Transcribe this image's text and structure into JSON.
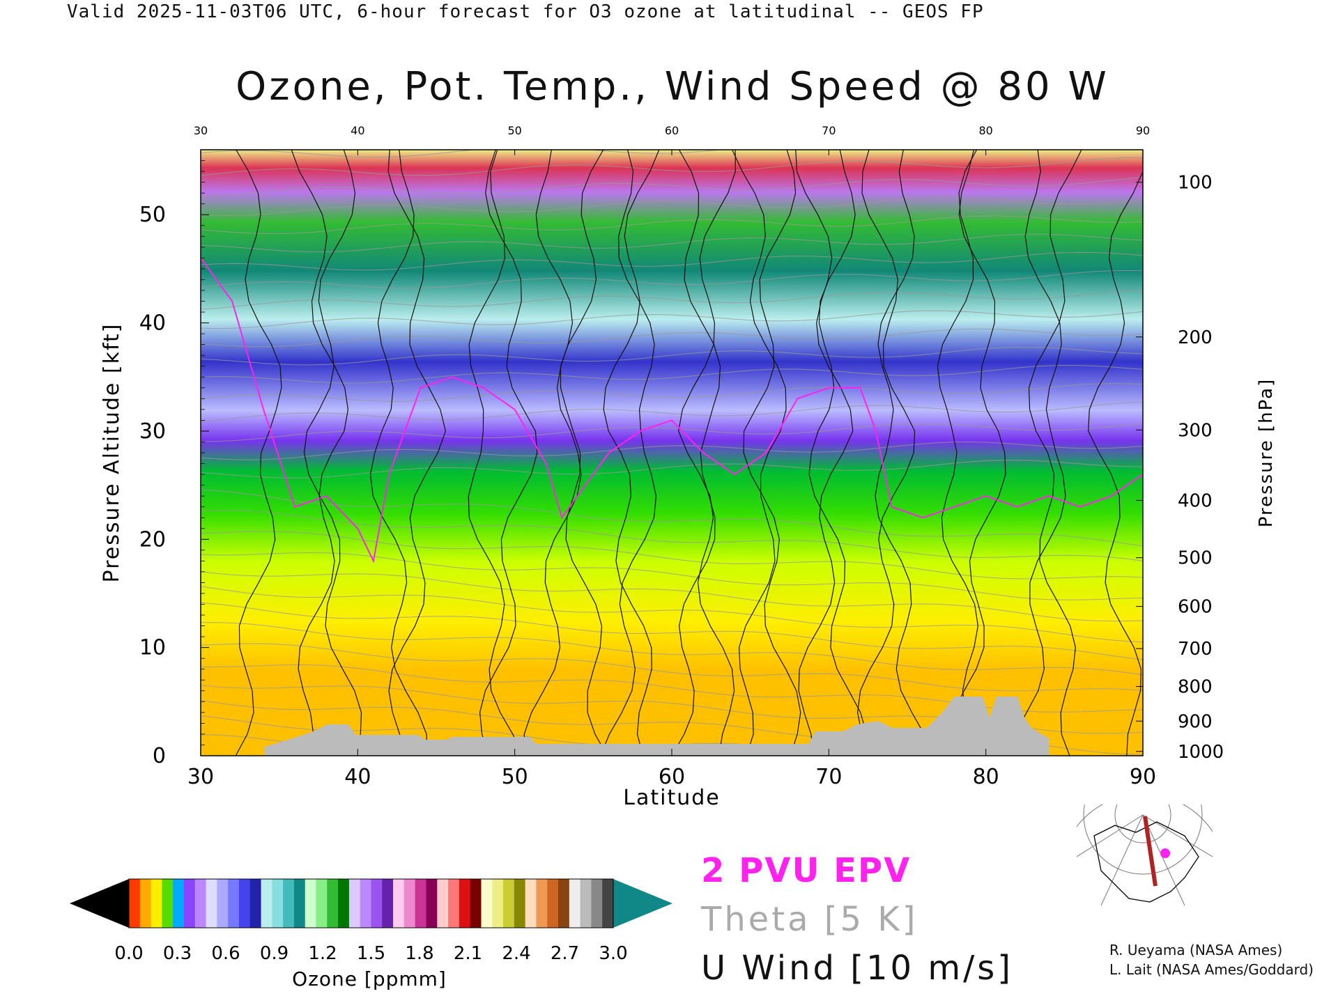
{
  "header": "Valid 2025-11-03T06 UTC, 6-hour forecast for O3 ozone at latitudinal -- GEOS FP",
  "chart_data": {
    "type": "heatmap",
    "title": "Ozone, Pot. Temp., Wind Speed @ 80 W",
    "xlabel": "Latitude",
    "ylabel_left": "Pressure Altitude [kft]",
    "ylabel_right": "Pressure [hPa]",
    "xlim": [
      30,
      90
    ],
    "ylim": [
      0,
      56
    ],
    "x_ticks": [
      30,
      40,
      50,
      60,
      70,
      80,
      90
    ],
    "y_ticks": [
      0,
      10,
      20,
      30,
      40,
      50
    ],
    "pressure_ticks": [
      {
        "hpa": 100,
        "kft": 53
      },
      {
        "hpa": 200,
        "kft": 38.7
      },
      {
        "hpa": 300,
        "kft": 30.1
      },
      {
        "hpa": 400,
        "kft": 23.6
      },
      {
        "hpa": 500,
        "kft": 18.3
      },
      {
        "hpa": 600,
        "kft": 13.8
      },
      {
        "hpa": 700,
        "kft": 9.9
      },
      {
        "hpa": 800,
        "kft": 6.4
      },
      {
        "hpa": 900,
        "kft": 3.2
      },
      {
        "hpa": 1000,
        "kft": 0.4
      }
    ],
    "tropopause_kft": [
      [
        30,
        46
      ],
      [
        32,
        42
      ],
      [
        34,
        32
      ],
      [
        36,
        23
      ],
      [
        38,
        24
      ],
      [
        40,
        21
      ],
      [
        41,
        18
      ],
      [
        42,
        26
      ],
      [
        44,
        34
      ],
      [
        46,
        35
      ],
      [
        48,
        34
      ],
      [
        50,
        32
      ],
      [
        52,
        27
      ],
      [
        53,
        22
      ],
      [
        54,
        24
      ],
      [
        56,
        28
      ],
      [
        58,
        30
      ],
      [
        60,
        31
      ],
      [
        62,
        28
      ],
      [
        64,
        26
      ],
      [
        66,
        28
      ],
      [
        68,
        33
      ],
      [
        70,
        34
      ],
      [
        72,
        34
      ],
      [
        73,
        30
      ],
      [
        74,
        23
      ],
      [
        76,
        22
      ],
      [
        78,
        23
      ],
      [
        80,
        24
      ],
      [
        82,
        23
      ],
      [
        84,
        24
      ],
      [
        86,
        23
      ],
      [
        88,
        24
      ],
      [
        90,
        26
      ]
    ],
    "ozone_colorbar": {
      "label": "Ozone [ppmm]",
      "ticks": [
        "0.0",
        "0.3",
        "0.6",
        "0.9",
        "1.2",
        "1.5",
        "1.8",
        "2.1",
        "2.4",
        "2.7",
        "3.0"
      ],
      "colors": [
        "#ff3a00",
        "#ffaa00",
        "#ffee00",
        "#55dd00",
        "#00aaff",
        "#8844ff",
        "#bb88ff",
        "#ddddff",
        "#aaaaff",
        "#7777ff",
        "#4444ee",
        "#2222aa",
        "#bbeeee",
        "#88dddd",
        "#44bbbb",
        "#118888",
        "#ccffcc",
        "#88ee88",
        "#33bb33",
        "#007700",
        "#ddc8ff",
        "#bb88ff",
        "#9955ee",
        "#6622aa",
        "#ffccee",
        "#ee88cc",
        "#cc3399",
        "#880055",
        "#ffcccc",
        "#ff7777",
        "#dd1111",
        "#770000",
        "#ffffcc",
        "#eeee88",
        "#cccc33",
        "#888800",
        "#ffddbb",
        "#ee9955",
        "#cc6622",
        "#884411",
        "#eeeeee",
        "#bbbbbb",
        "#888888",
        "#444444"
      ],
      "under_color": "#000000",
      "over_color": "#118888"
    },
    "legend": {
      "epv": "2 PVU EPV",
      "theta": "Theta [5 K]",
      "wind": "U Wind [10 m/s]"
    }
  },
  "credits": [
    "R. Ueyama (NASA Ames)",
    "L. Lait (NASA Ames/Goddard)"
  ]
}
